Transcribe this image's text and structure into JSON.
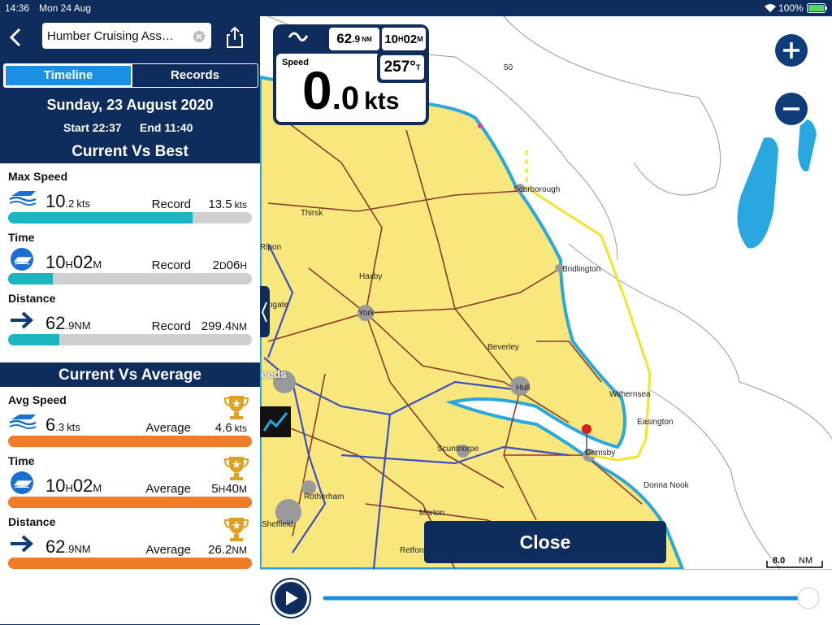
{
  "status_bar": {
    "time": "14:36",
    "date": "Mon 24 Aug",
    "battery": "100%"
  },
  "header": {
    "search": "Humber Cruising Ass…"
  },
  "tabs": [
    "Timeline",
    "Records"
  ],
  "trip": {
    "date": "Sunday, 23 August 2020",
    "start": "Start 22:37",
    "end": "End 11:40"
  },
  "best": {
    "title": "Current Vs Best",
    "items": [
      {
        "label": "Max Speed",
        "value": [
          "10",
          ".2",
          "kts"
        ],
        "compare_label": "Record",
        "compare": [
          "13.5",
          "kts"
        ]
      },
      {
        "label": "Time",
        "value": [
          "10",
          "H",
          "02",
          "M"
        ],
        "compare_label": "Record",
        "compare": [
          "2",
          "D",
          "06",
          "H"
        ]
      },
      {
        "label": "Distance",
        "value": [
          "62",
          ".9",
          "NM"
        ],
        "compare_label": "Record",
        "compare": [
          "299.4",
          "NM"
        ]
      }
    ]
  },
  "average": {
    "title": "Current Vs Average",
    "items": [
      {
        "label": "Avg Speed",
        "value": [
          "6",
          ".3",
          "kts"
        ],
        "compare_label": "Average",
        "compare": [
          "4.6",
          "kts"
        ]
      },
      {
        "label": "Time",
        "value": [
          "10",
          "H",
          "02",
          "M"
        ],
        "compare_label": "Average",
        "compare": [
          "5",
          "H",
          "40",
          "M"
        ]
      },
      {
        "label": "Distance",
        "value": [
          "62",
          ".9",
          "NM"
        ],
        "compare_label": "Average",
        "compare": [
          "26.2",
          "NM"
        ]
      }
    ]
  },
  "instruments": {
    "distance": [
      "62",
      ".9",
      "NM"
    ],
    "duration": [
      "10",
      "H",
      "02",
      "M"
    ],
    "speed_label": "Speed",
    "speed": [
      "0",
      ".0",
      "kts"
    ],
    "heading": [
      "257°",
      "T"
    ]
  },
  "map_labels": [
    "50",
    "Scarborough",
    "Thirsk",
    "Ripon",
    "Haxby",
    "York",
    "Bridlington",
    "ogate",
    "Beverley",
    "eeds",
    "Hull",
    "Withernsea",
    "Easington",
    "Scunthorpe",
    "Grimsby",
    "Donna Nook",
    "Rotherham",
    "Morton",
    "Sheffield",
    "Retford"
  ],
  "close": "Close",
  "scale": {
    "value": "8.0",
    "unit": "NM"
  }
}
